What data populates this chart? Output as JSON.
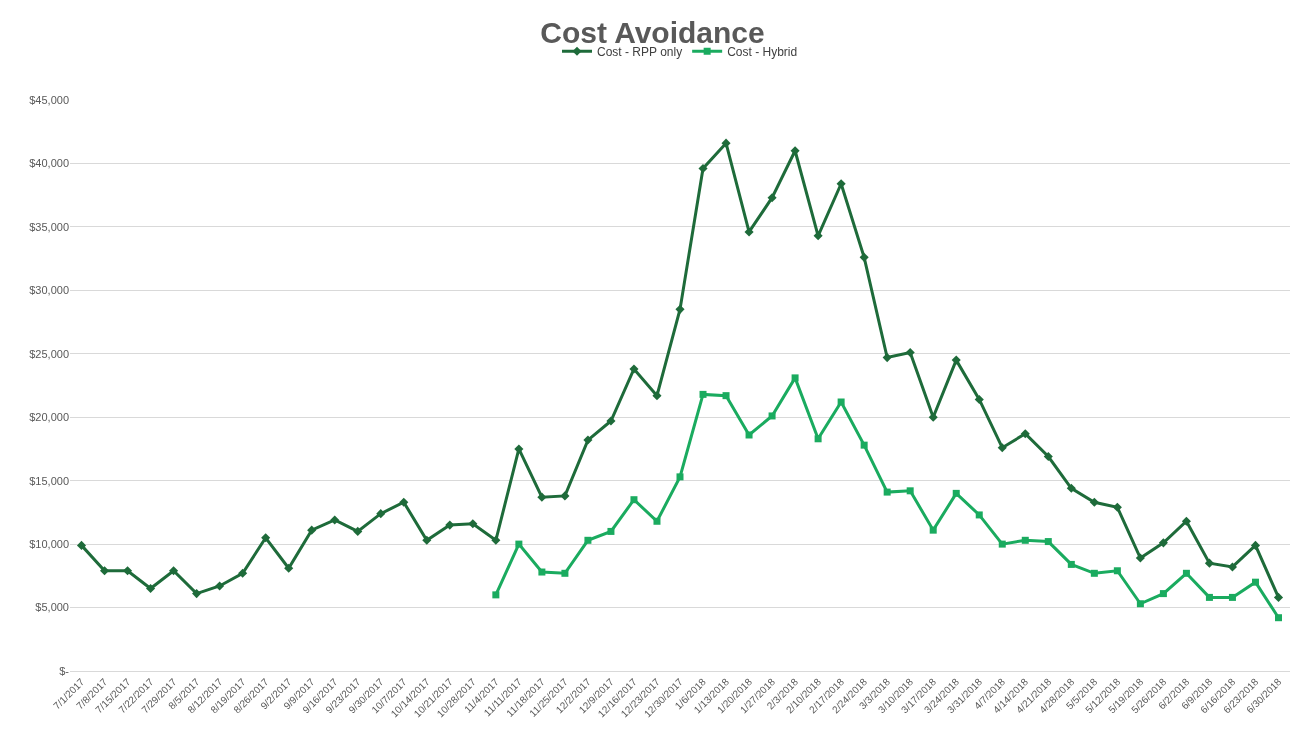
{
  "chart_data": {
    "type": "line",
    "title": "Cost Avoidance",
    "categories": [
      "7/1/2017",
      "7/8/2017",
      "7/15/2017",
      "7/22/2017",
      "7/29/2017",
      "8/5/2017",
      "8/12/2017",
      "8/19/2017",
      "8/26/2017",
      "9/2/2017",
      "9/9/2017",
      "9/16/2017",
      "9/23/2017",
      "9/30/2017",
      "10/7/2017",
      "10/14/2017",
      "10/21/2017",
      "10/28/2017",
      "11/4/2017",
      "11/11/2017",
      "11/18/2017",
      "11/25/2017",
      "12/2/2017",
      "12/9/2017",
      "12/16/2017",
      "12/23/2017",
      "12/30/2017",
      "1/6/2018",
      "1/13/2018",
      "1/20/2018",
      "1/27/2018",
      "2/3/2018",
      "2/10/2018",
      "2/17/2018",
      "2/24/2018",
      "3/3/2018",
      "3/10/2018",
      "3/17/2018",
      "3/24/2018",
      "3/31/2018",
      "4/7/2018",
      "4/14/2018",
      "4/21/2018",
      "4/28/2018",
      "5/5/2018",
      "5/12/2018",
      "5/19/2018",
      "5/26/2018",
      "6/2/2018",
      "6/9/2018",
      "6/16/2018",
      "6/23/2018",
      "6/30/2018"
    ],
    "series": [
      {
        "name": "Cost - RPP only",
        "color": "#1e6b3a",
        "marker": "diamond",
        "values": [
          9900,
          7900,
          7900,
          6500,
          7900,
          6100,
          6700,
          7700,
          10500,
          8100,
          11100,
          11900,
          11000,
          12400,
          13300,
          10300,
          11500,
          11600,
          10300,
          17500,
          13700,
          13800,
          18200,
          19700,
          23800,
          21700,
          28500,
          39600,
          41600,
          34600,
          37300,
          41000,
          34300,
          38400,
          32600,
          24700,
          25100,
          20000,
          24500,
          21400,
          17600,
          18700,
          16900,
          14400,
          13300,
          12900,
          8900,
          10100,
          11800,
          8500,
          8200,
          9900,
          5800
        ]
      },
      {
        "name": "Cost - Hybrid",
        "color": "#1aab5f",
        "marker": "square",
        "values": [
          null,
          null,
          null,
          null,
          null,
          null,
          null,
          null,
          null,
          null,
          null,
          null,
          null,
          null,
          null,
          null,
          null,
          null,
          6000,
          10000,
          7800,
          7700,
          10300,
          11000,
          13500,
          11800,
          15300,
          21800,
          21700,
          18600,
          20100,
          23100,
          18300,
          21200,
          17800,
          14100,
          14200,
          11100,
          14000,
          12300,
          10000,
          10300,
          10200,
          8400,
          7700,
          7900,
          5300,
          6100,
          7700,
          5800,
          5800,
          7000,
          4200
        ]
      }
    ],
    "ylim": [
      0,
      45000
    ],
    "yticks": [
      {
        "value": 0,
        "label": "$-"
      },
      {
        "value": 5000,
        "label": "$5,000"
      },
      {
        "value": 10000,
        "label": "$10,000"
      },
      {
        "value": 15000,
        "label": "$15,000"
      },
      {
        "value": 20000,
        "label": "$20,000"
      },
      {
        "value": 25000,
        "label": "$25,000"
      },
      {
        "value": 30000,
        "label": "$30,000"
      },
      {
        "value": 35000,
        "label": "$35,000"
      },
      {
        "value": 40000,
        "label": "$40,000"
      },
      {
        "value": 45000,
        "label": "$45,000"
      }
    ],
    "grid": "y",
    "legend": "top",
    "line_style": "solid"
  }
}
